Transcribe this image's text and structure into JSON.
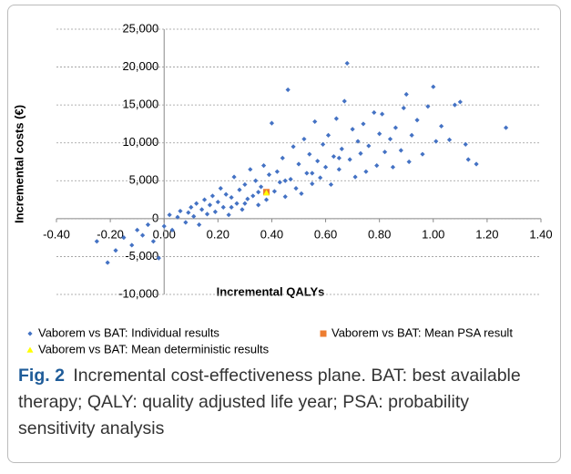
{
  "chart_data": {
    "type": "scatter",
    "xlabel": "Incremental QALYs",
    "ylabel": "Incremental costs (€)",
    "xlim": [
      -0.4,
      1.4
    ],
    "ylim": [
      -10000,
      25000
    ],
    "xticks": [
      {
        "value": -0.4,
        "label": "-0.40"
      },
      {
        "value": -0.2,
        "label": "-0.20"
      },
      {
        "value": 0,
        "label": "0.00"
      },
      {
        "value": 0.2,
        "label": "0.20"
      },
      {
        "value": 0.4,
        "label": "0.40"
      },
      {
        "value": 0.6,
        "label": "0.60"
      },
      {
        "value": 0.8,
        "label": "0.80"
      },
      {
        "value": 1,
        "label": "1.00"
      },
      {
        "value": 1.2,
        "label": "1.20"
      },
      {
        "value": 1.4,
        "label": "1.40"
      }
    ],
    "yticks": [
      {
        "value": -10000,
        "label": "-10,000"
      },
      {
        "value": -5000,
        "label": "-5,000"
      },
      0,
      {
        "value": 5000,
        "label": "5,000"
      },
      {
        "value": 10000,
        "label": "10,000"
      },
      {
        "value": 15000,
        "label": "15,000"
      },
      {
        "value": 20000,
        "label": "20,000"
      },
      {
        "value": 25000,
        "label": "25,000"
      }
    ],
    "grid": true,
    "series": [
      {
        "name": "Vaborem vs BAT: Individual results",
        "color": "#4472c4",
        "marker": "diamond",
        "x": [
          -0.25,
          -0.21,
          -0.18,
          -0.15,
          -0.12,
          -0.1,
          -0.08,
          -0.06,
          -0.04,
          -0.02,
          0,
          0.02,
          0.03,
          0.05,
          0.06,
          0.08,
          0.09,
          0.1,
          0.11,
          0.12,
          0.13,
          0.14,
          0.15,
          0.16,
          0.17,
          0.18,
          0.19,
          0.2,
          0.21,
          0.22,
          0.23,
          0.24,
          0.25,
          0.26,
          0.27,
          0.28,
          0.29,
          0.3,
          0.31,
          0.32,
          0.33,
          0.34,
          0.35,
          0.36,
          0.37,
          0.38,
          0.39,
          0.4,
          0.41,
          0.42,
          0.43,
          0.44,
          0.45,
          0.46,
          0.47,
          0.48,
          0.49,
          0.5,
          0.51,
          0.52,
          0.53,
          0.54,
          0.55,
          0.56,
          0.57,
          0.58,
          0.59,
          0.6,
          0.61,
          0.62,
          0.63,
          0.64,
          0.65,
          0.66,
          0.67,
          0.68,
          0.69,
          0.7,
          0.71,
          0.72,
          0.73,
          0.74,
          0.75,
          0.76,
          0.78,
          0.79,
          0.8,
          0.81,
          0.82,
          0.84,
          0.85,
          0.86,
          0.88,
          0.89,
          0.9,
          0.91,
          0.92,
          0.94,
          0.96,
          0.98,
          1,
          1.01,
          1.03,
          1.06,
          1.08,
          1.1,
          1.12,
          1.13,
          1.16,
          1.27,
          0.35,
          0.3,
          0.25,
          0.45,
          0.55,
          0.65
        ],
        "values": [
          -3000,
          -5800,
          -4200,
          -2500,
          -3500,
          -1500,
          -2200,
          -800,
          -3000,
          -5200,
          -1000,
          500,
          -1500,
          200,
          1000,
          -500,
          800,
          1500,
          300,
          2000,
          -800,
          1200,
          2500,
          600,
          1800,
          3000,
          900,
          2200,
          4000,
          1500,
          3200,
          500,
          2800,
          5500,
          2000,
          3800,
          1200,
          4500,
          2600,
          6500,
          3000,
          5000,
          1800,
          4200,
          7000,
          2500,
          5800,
          12600,
          3600,
          6200,
          4800,
          8000,
          2900,
          17000,
          5200,
          9500,
          4000,
          7200,
          3300,
          10500,
          6000,
          8500,
          4600,
          12800,
          7600,
          5400,
          9800,
          6800,
          11000,
          4500,
          8200,
          13200,
          6500,
          9200,
          15500,
          20500,
          7800,
          11800,
          5500,
          10200,
          8600,
          12500,
          6200,
          9600,
          14000,
          7000,
          11200,
          13800,
          8800,
          10500,
          6800,
          12000,
          9000,
          14600,
          16400,
          7500,
          11000,
          13000,
          8500,
          14800,
          17400,
          10200,
          12200,
          10400,
          15000,
          15400,
          9800,
          7800,
          7200,
          12000,
          3500,
          2000,
          1500,
          5000,
          6000,
          8000
        ]
      },
      {
        "name": "Vaborem vs BAT: Mean PSA result",
        "color": "#ed7d31",
        "marker": "square",
        "x": [
          0.38
        ],
        "values": [
          3500
        ]
      },
      {
        "name": "Vaborem vs BAT: Mean deterministic results",
        "color": "#ffff00",
        "marker": "triangle",
        "x": [
          0.38
        ],
        "values": [
          3400
        ]
      }
    ]
  },
  "caption": {
    "label": "Fig. 2",
    "text": "Incremental cost-effectiveness plane. BAT: best available therapy; QALY: quality adjusted life year; PSA: probability sensitivity analysis"
  }
}
